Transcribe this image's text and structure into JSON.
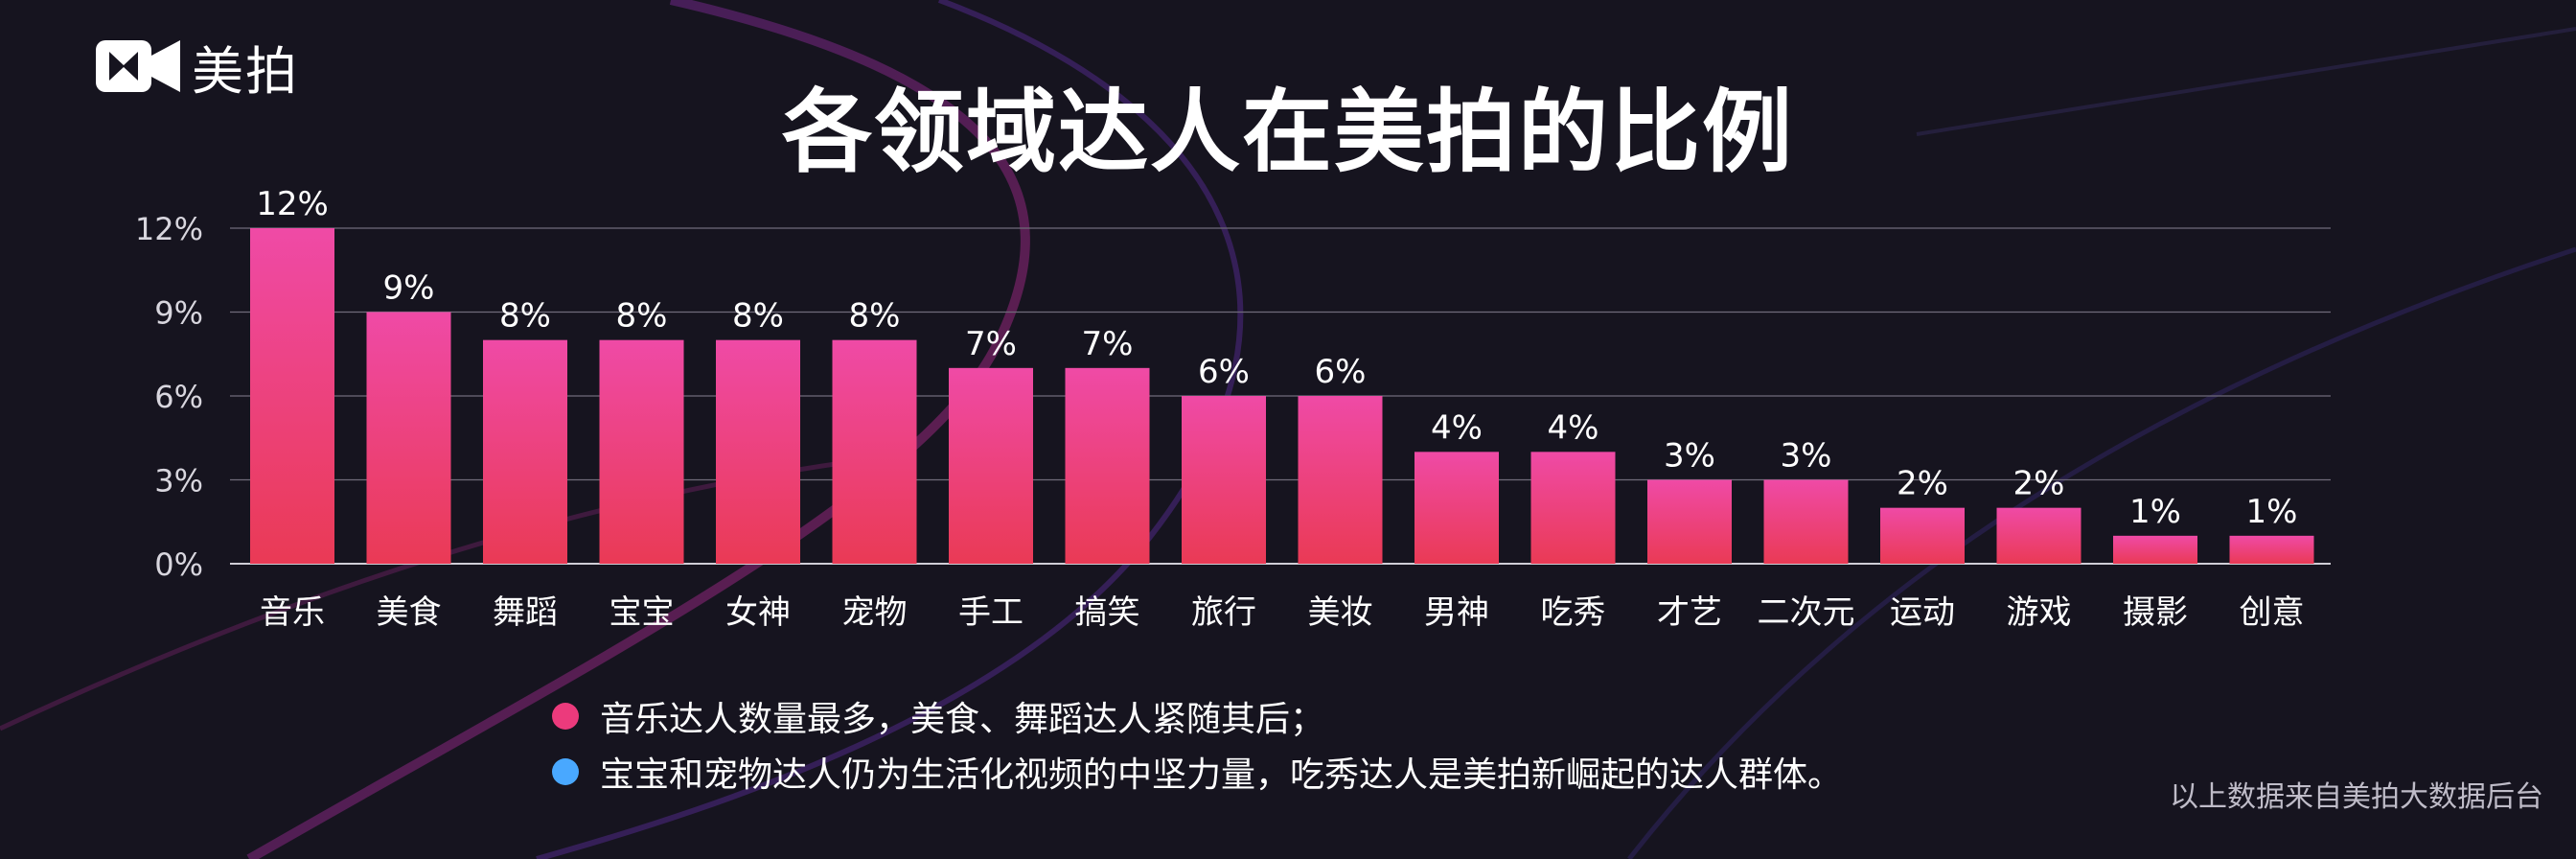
{
  "logo": {
    "text": "美拍",
    "icon": "meipai-camera-icon"
  },
  "title": "各领域达人在美拍的比例",
  "chart_data": {
    "type": "bar",
    "title": "各领域达人在美拍的比例",
    "categories": [
      "音乐",
      "美食",
      "舞蹈",
      "宝宝",
      "女神",
      "宠物",
      "手工",
      "搞笑",
      "旅行",
      "美妆",
      "男神",
      "吃秀",
      "才艺",
      "二次元",
      "运动",
      "游戏",
      "摄影",
      "创意"
    ],
    "values": [
      12,
      9,
      8,
      8,
      8,
      8,
      7,
      7,
      6,
      6,
      4,
      4,
      3,
      3,
      2,
      2,
      1,
      1
    ],
    "data_labels": [
      "12%",
      "9%",
      "8%",
      "8%",
      "8%",
      "8%",
      "7%",
      "7%",
      "6%",
      "6%",
      "4%",
      "4%",
      "3%",
      "3%",
      "2%",
      "2%",
      "1%",
      "1%"
    ],
    "yticks": [
      0,
      3,
      6,
      9,
      12
    ],
    "ytick_labels": [
      "0%",
      "3%",
      "6%",
      "9%",
      "12%"
    ],
    "ylim": [
      0,
      12
    ],
    "grid": true,
    "xlabel": "",
    "ylabel": "",
    "bar_gradient": [
      "#ef4aa6",
      "#ea3a55"
    ]
  },
  "notes": [
    {
      "text": "音乐达人数量最多，美食、舞蹈达人紧随其后；",
      "color": "#ec3a7c"
    },
    {
      "text": "宝宝和宠物达人仍为生活化视频的中坚力量，吃秀达人是美拍新崛起的达人群体。",
      "color": "#49a8ff"
    }
  ],
  "source": "以上数据来自美拍大数据后台"
}
